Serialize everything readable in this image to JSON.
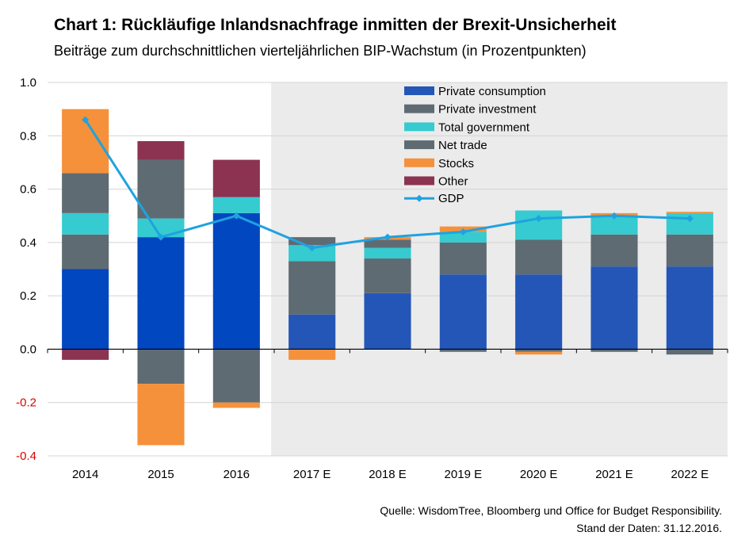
{
  "title": "Chart 1: Rückläufige Inlandsnachfrage inmitten der Brexit-Unsicherheit",
  "subtitle": "Beiträge zum durchschnittlichen vierteljährlichen BIP-Wachstum (in Prozentpunkten)",
  "source_line1": "Quelle: WisdomTree, Bloomberg und Office for Budget Responsibility.",
  "source_line2": "Stand der Daten: 31.12.2016.",
  "colors": {
    "private_consumption_actual": "#0047c0",
    "private_consumption_forecast": "#2456b8",
    "private_investment": "#5f6b73",
    "total_government": "#35cbd0",
    "net_trade": "#5f6b73",
    "stocks": "#f5913a",
    "other": "#8b3350",
    "gdp": "#1fa2e0",
    "forecast_shading": "#ebebeb",
    "negative_tick": "#e00000"
  },
  "chart_data": {
    "type": "bar",
    "stacked": true,
    "categories": [
      "2014",
      "2015",
      "2016",
      "2017 E",
      "2018 E",
      "2019 E",
      "2020 E",
      "2021 E",
      "2022 E"
    ],
    "forecast_start_index": 3,
    "ylim": [
      -0.4,
      1.0
    ],
    "yticks": [
      "1.0",
      "0.8",
      "0.6",
      "0.4",
      "0.2",
      "0.0",
      "-0.2",
      "-0.4"
    ],
    "ytick_values": [
      1.0,
      0.8,
      0.6,
      0.4,
      0.2,
      0.0,
      -0.2,
      -0.4
    ],
    "grid": true,
    "legend_position": "top-right",
    "series": [
      {
        "name": "Private consumption",
        "key": "private_consumption",
        "values": [
          0.3,
          0.42,
          0.51,
          0.13,
          0.21,
          0.28,
          0.28,
          0.31,
          0.31
        ]
      },
      {
        "name": "Private investment",
        "key": "private_investment",
        "values": [
          0.13,
          -0.13,
          -0.2,
          0.2,
          0.13,
          0.12,
          0.13,
          0.12,
          0.12
        ]
      },
      {
        "name": "Total government",
        "key": "total_government",
        "values": [
          0.08,
          0.07,
          0.06,
          0.06,
          0.04,
          0.04,
          0.11,
          0.07,
          0.08
        ]
      },
      {
        "name": "Net trade",
        "key": "net_trade",
        "values": [
          0.15,
          0.22,
          0.0,
          0.03,
          0.03,
          -0.01,
          -0.01,
          -0.01,
          -0.02
        ]
      },
      {
        "name": "Stocks",
        "key": "stocks",
        "values": [
          0.24,
          -0.23,
          -0.02,
          -0.04,
          0.01,
          0.02,
          -0.01,
          0.01,
          0.005
        ]
      },
      {
        "name": "Other",
        "key": "other",
        "values": [
          -0.04,
          0.07,
          0.14,
          0.0,
          0.0,
          0.0,
          0.0,
          0.0,
          0.0
        ]
      }
    ],
    "line": {
      "name": "GDP",
      "values": [
        0.86,
        0.42,
        0.5,
        0.38,
        0.42,
        0.44,
        0.49,
        0.5,
        0.49
      ]
    }
  }
}
